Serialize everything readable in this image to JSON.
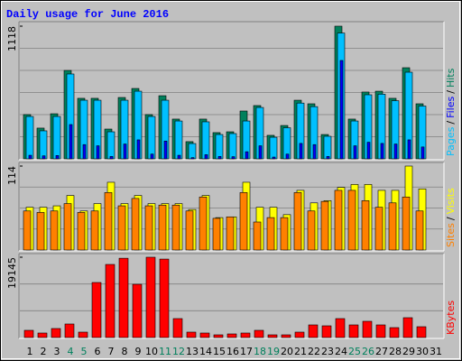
{
  "chart_data": [
    {
      "type": "bar",
      "title": "Daily usage for June 2016",
      "legend_separator": "/",
      "ylim": [
        0,
        1118
      ],
      "yticks": [
        1118
      ],
      "series": [
        {
          "name": "Pages",
          "color": "#00c0ff",
          "values": [
            357,
            236,
            357,
            715,
            494,
            494,
            228,
            494,
            570,
            357,
            494,
            319,
            129,
            312,
            205,
            213,
            319,
            433,
            182,
            262,
            470,
            440,
            190,
            1060,
            319,
            540,
            545,
            490,
            730,
            445,
            0
          ]
        },
        {
          "name": "Files",
          "color": "#0000ff",
          "values": [
            30,
            25,
            28,
            289,
            120,
            110,
            20,
            125,
            160,
            40,
            150,
            30,
            10,
            35,
            20,
            18,
            60,
            110,
            15,
            40,
            130,
            120,
            20,
            829,
            110,
            140,
            130,
            125,
            160,
            100,
            0
          ]
        },
        {
          "name": "Hits",
          "color": "#00805c",
          "values": [
            373,
            259,
            380,
            745,
            510,
            510,
            251,
            517,
            593,
            373,
            532,
            335,
            145,
            335,
            221,
            228,
            403,
            449,
            198,
            281,
            494,
            464,
            205,
            1118,
            335,
            563,
            570,
            510,
            768,
            464,
            0
          ]
        }
      ]
    },
    {
      "type": "bar",
      "ylim": [
        0,
        114
      ],
      "yticks": [
        114
      ],
      "series": [
        {
          "name": "Sites",
          "color": "#ff8000",
          "values": [
            53,
            51,
            53,
            63,
            51,
            53,
            78,
            60,
            70,
            60,
            61,
            61,
            53,
            72,
            43,
            45,
            78,
            38,
            44,
            44,
            78,
            53,
            66,
            81,
            81,
            67,
            58,
            64,
            72,
            53,
            0
          ]
        },
        {
          "name": "Visits",
          "color": "#ffff00",
          "values": [
            58,
            58,
            60,
            74,
            53,
            63,
            92,
            63,
            74,
            63,
            63,
            63,
            55,
            74,
            44,
            45,
            92,
            58,
            58,
            48,
            81,
            64,
            67,
            85,
            89,
            89,
            81,
            81,
            114,
            83,
            0
          ]
        }
      ]
    },
    {
      "type": "bar",
      "ylim": [
        0,
        19145
      ],
      "yticks": [
        19145
      ],
      "series": [
        {
          "name": "KBytes",
          "color": "#ff0000",
          "values": [
            1721,
            1076,
            2151,
            3227,
            1291,
            13121,
            17423,
            18900,
            12691,
            19145,
            18700,
            4517,
            1291,
            1076,
            645,
            860,
            1076,
            1721,
            645,
            645,
            1291,
            3011,
            2796,
            4517,
            3011,
            3872,
            3011,
            2366,
            4732,
            2581,
            0
          ]
        }
      ],
      "categories": [
        "1",
        "2",
        "3",
        "4",
        "5",
        "6",
        "7",
        "8",
        "9",
        "10",
        "11",
        "12",
        "13",
        "14",
        "15",
        "16",
        "17",
        "18",
        "19",
        "20",
        "21",
        "22",
        "23",
        "24",
        "25",
        "26",
        "27",
        "28",
        "29",
        "30",
        "31"
      ],
      "category_colors": [
        "#000000",
        "#000000",
        "#000000",
        "#00805c",
        "#00805c",
        "#000000",
        "#000000",
        "#000000",
        "#000000",
        "#000000",
        "#00805c",
        "#00805c",
        "#000000",
        "#000000",
        "#000000",
        "#000000",
        "#000000",
        "#00805c",
        "#00805c",
        "#000000",
        "#000000",
        "#000000",
        "#000000",
        "#000000",
        "#00805c",
        "#00805c",
        "#000000",
        "#000000",
        "#000000",
        "#000000",
        "#000000"
      ]
    }
  ]
}
